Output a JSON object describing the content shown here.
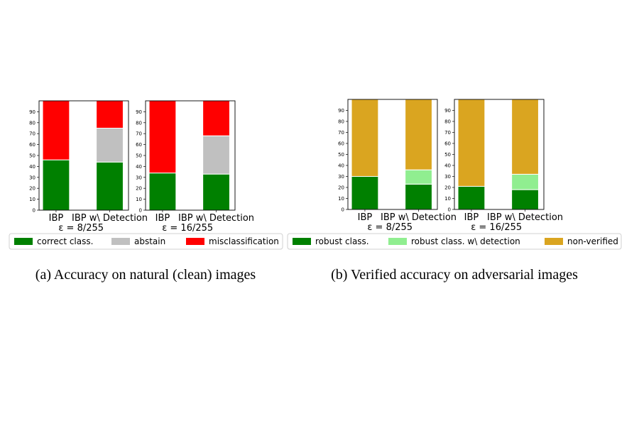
{
  "chart_data": [
    {
      "type": "bar",
      "stacked": true,
      "categories": [
        "IBP",
        "IBP w\\ Detection"
      ],
      "xlabel": "ε = 8/255",
      "ylim": [
        0,
        100
      ],
      "yticks": [
        0,
        10,
        20,
        30,
        40,
        50,
        60,
        70,
        80,
        90
      ],
      "series": [
        {
          "name": "correct class.",
          "color": "#008000",
          "values": [
            46,
            44
          ]
        },
        {
          "name": "abstain",
          "color": "#c0c0c0",
          "values": [
            0,
            31
          ]
        },
        {
          "name": "misclassification",
          "color": "#ff0000",
          "values": [
            54,
            25
          ]
        }
      ]
    },
    {
      "type": "bar",
      "stacked": true,
      "categories": [
        "IBP",
        "IBP w\\ Detection"
      ],
      "xlabel": "ε = 16/255",
      "ylim": [
        0,
        100
      ],
      "yticks": [
        0,
        10,
        20,
        30,
        40,
        50,
        60,
        70,
        80,
        90
      ],
      "series": [
        {
          "name": "correct class.",
          "color": "#008000",
          "values": [
            34,
            33
          ]
        },
        {
          "name": "abstain",
          "color": "#c0c0c0",
          "values": [
            0,
            35
          ]
        },
        {
          "name": "misclassification",
          "color": "#ff0000",
          "values": [
            66,
            32
          ]
        }
      ]
    },
    {
      "type": "bar",
      "stacked": true,
      "categories": [
        "IBP",
        "IBP w\\ Detection"
      ],
      "xlabel": "ε = 8/255",
      "ylim": [
        0,
        100
      ],
      "yticks": [
        0,
        10,
        20,
        30,
        40,
        50,
        60,
        70,
        80,
        90
      ],
      "series": [
        {
          "name": "robust class.",
          "color": "#008000",
          "values": [
            30,
            23
          ]
        },
        {
          "name": "robust class. w\\ detection",
          "color": "#90ee90",
          "values": [
            0,
            13
          ]
        },
        {
          "name": "non-verified",
          "color": "#daa520",
          "values": [
            70,
            64
          ]
        }
      ]
    },
    {
      "type": "bar",
      "stacked": true,
      "categories": [
        "IBP",
        "IBP w\\ Detection"
      ],
      "xlabel": "ε = 16/255",
      "ylim": [
        0,
        100
      ],
      "yticks": [
        0,
        10,
        20,
        30,
        40,
        50,
        60,
        70,
        80,
        90
      ],
      "series": [
        {
          "name": "robust class.",
          "color": "#008000",
          "values": [
            21,
            18
          ]
        },
        {
          "name": "robust class. w\\ detection",
          "color": "#90ee90",
          "values": [
            0,
            14
          ]
        },
        {
          "name": "non-verified",
          "color": "#daa520",
          "values": [
            79,
            68
          ]
        }
      ]
    }
  ],
  "legends": [
    {
      "items": [
        {
          "label": "correct class.",
          "color": "#008000"
        },
        {
          "label": "abstain",
          "color": "#c0c0c0"
        },
        {
          "label": "misclassification",
          "color": "#ff0000"
        }
      ]
    },
    {
      "items": [
        {
          "label": "robust class.",
          "color": "#008000"
        },
        {
          "label": "robust class. w\\ detection",
          "color": "#90ee90"
        },
        {
          "label": "non-verified",
          "color": "#daa520"
        }
      ]
    }
  ],
  "captions": {
    "a": "(a) Accuracy on natural (clean) images",
    "b": "(b) Verified accuracy on adversarial images"
  }
}
